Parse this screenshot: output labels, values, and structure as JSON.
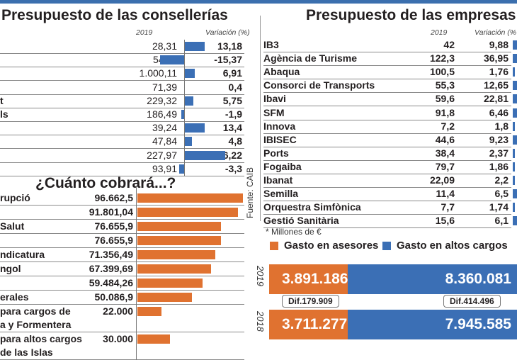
{
  "chart_data": [
    {
      "type": "bar",
      "title": "Presupuesto de las consellerías",
      "columns": [
        "2019",
        "Variación (%)"
      ],
      "categories": [
        "",
        "",
        "",
        "",
        "t",
        "ls",
        "",
        "",
        "",
        ""
      ],
      "series": [
        {
          "name": "2019",
          "display": [
            "28,31",
            "54,11",
            "1.000,11",
            "71,39",
            "229,32",
            "186,49",
            "39,24",
            "47,84",
            "227,97",
            "93,91"
          ],
          "values": [
            28.31,
            54.11,
            1000.11,
            71.39,
            229.32,
            186.49,
            39.24,
            47.84,
            227.97,
            93.91
          ]
        },
        {
          "name": "Variación (%)",
          "display": [
            "13,18",
            "-15,37",
            "6,91",
            "0,4",
            "5,75",
            "-1,9",
            "13,4",
            "4,8",
            "26,22",
            "-3,3"
          ],
          "values": [
            13.18,
            -15.37,
            6.91,
            0.4,
            5.75,
            -1.9,
            13.4,
            4.8,
            26.22,
            -3.3
          ]
        }
      ],
      "bar_color": "#3b6fb5"
    },
    {
      "type": "bar",
      "title": "Presupuesto de las empresas púb",
      "columns": [
        "2019",
        "Variación (%"
      ],
      "categories": [
        "IB3",
        "Agència de Turisme",
        "Abaqua",
        "Consorci de Transports",
        "Ibavi",
        "SFM",
        "Innova",
        "IBISEC",
        "Ports",
        "Fogaiba",
        "Ibanat",
        "Semilla",
        "Orquestra Simfònica",
        "Gestió Sanitària"
      ],
      "series": [
        {
          "name": "2019",
          "display": [
            "42",
            "122,3",
            "100,5",
            "55,3",
            "59,6",
            "91,8",
            "7,2",
            "44,6",
            "38,4",
            "79,7",
            "22,09",
            "11,4",
            "7,7",
            "15,6"
          ],
          "values": [
            42,
            122.3,
            100.5,
            55.3,
            59.6,
            91.8,
            7.2,
            44.6,
            38.4,
            79.7,
            22.09,
            11.4,
            7.7,
            15.6
          ]
        },
        {
          "name": "Variación (%)",
          "display": [
            "9,88",
            "36,95",
            "1,76",
            "12,65",
            "22,81",
            "6,46",
            "1,8",
            "9,23",
            "2,37",
            "1,86",
            "2,2",
            "6,5",
            "1,74",
            "6,1"
          ],
          "values": [
            9.88,
            36.95,
            1.76,
            12.65,
            22.81,
            6.46,
            1.8,
            9.23,
            2.37,
            1.86,
            2.2,
            6.5,
            1.74,
            6.1
          ]
        }
      ],
      "bar_color": "#3b6fb5"
    },
    {
      "type": "bar",
      "title": "¿Cuánto cobrará...?",
      "categories": [
        "rupció",
        "",
        "Salut",
        "",
        "ndicatura",
        "ngol",
        "",
        "erales",
        "para cargos de|a y Formentera",
        "para altos cargos| de las Islas"
      ],
      "display": [
        "96.662,5",
        "91.801,04",
        "76.655,9",
        "76.655,9",
        "71.356,49",
        "67.399,69",
        "59.484,26",
        "50.086,9",
        "22.000",
        "30.000"
      ],
      "values": [
        96662.5,
        91801.04,
        76655.9,
        76655.9,
        71356.49,
        67399.69,
        59484.26,
        50086.9,
        22000,
        30000
      ],
      "bar_color": "#e07230"
    },
    {
      "type": "bar",
      "title": "Gasto en asesores / Gasto en altos cargos",
      "categories": [
        "2019",
        "2018"
      ],
      "series": [
        {
          "name": "Gasto en asesores",
          "color": "#e07230",
          "display": [
            "3.891.186",
            "3.711.277"
          ],
          "values": [
            3891186,
            3711277
          ]
        },
        {
          "name": "Gasto en altos cargos",
          "color": "#3b6fb5",
          "display": [
            "8.360.081",
            "7.945.585"
          ],
          "values": [
            8360081,
            7945585
          ]
        }
      ],
      "differences": [
        "Dif.179.909",
        "Dif.414.496"
      ],
      "legend": "top"
    }
  ],
  "source": "Fuente: CAIB",
  "note": "* Millones de €"
}
